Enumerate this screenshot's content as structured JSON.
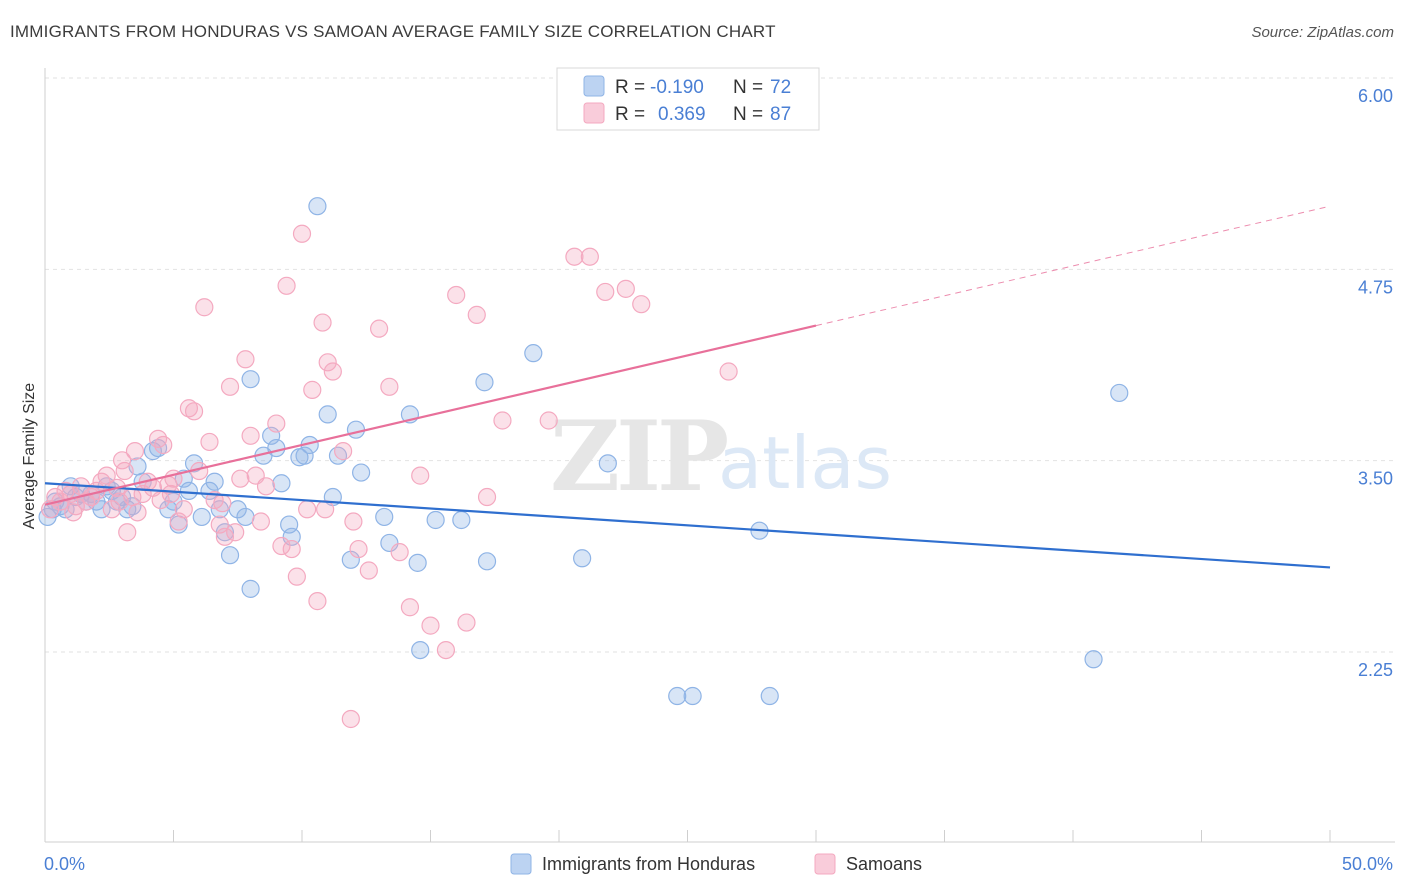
{
  "title": "IMMIGRANTS FROM HONDURAS VS SAMOAN AVERAGE FAMILY SIZE CORRELATION CHART",
  "source": "Source: ZipAtlas.com",
  "watermark": {
    "zip": "ZIP",
    "atlas": "atlas"
  },
  "chart_data": {
    "type": "scatter",
    "ylabel": "Average Family Size",
    "xlim": [
      0,
      50
    ],
    "ylim": [
      1.2,
      6.2
    ],
    "yticks": [
      {
        "value": 6.0,
        "label": "6.00"
      },
      {
        "value": 4.75,
        "label": "4.75"
      },
      {
        "value": 3.5,
        "label": "3.50"
      },
      {
        "value": 2.25,
        "label": "2.25"
      }
    ],
    "xtick_labels": {
      "min": "0.0%",
      "max": "50.0%"
    },
    "grid": true,
    "legend_position": "top-center",
    "series": [
      {
        "name": "Immigrants from Honduras",
        "color": "#8fb4e6",
        "line_color": "#2f6fcf",
        "r_label": "R =",
        "r_value": "-0.190",
        "n_label": "N =",
        "n_value": "72",
        "trend": {
          "x0": 0,
          "y0": 3.47,
          "x1": 50,
          "y1": 2.92
        },
        "points": [
          [
            0.1,
            3.25
          ],
          [
            0.3,
            3.3
          ],
          [
            0.4,
            3.35
          ],
          [
            0.6,
            3.32
          ],
          [
            0.8,
            3.3
          ],
          [
            1.0,
            3.45
          ],
          [
            1.2,
            3.38
          ],
          [
            1.4,
            3.4
          ],
          [
            1.6,
            3.35
          ],
          [
            1.8,
            3.4
          ],
          [
            2.0,
            3.35
          ],
          [
            2.2,
            3.3
          ],
          [
            2.4,
            3.45
          ],
          [
            2.6,
            3.42
          ],
          [
            2.8,
            3.35
          ],
          [
            3.0,
            3.38
          ],
          [
            3.2,
            3.3
          ],
          [
            3.4,
            3.32
          ],
          [
            3.6,
            3.58
          ],
          [
            3.8,
            3.48
          ],
          [
            4.2,
            3.68
          ],
          [
            4.4,
            3.7
          ],
          [
            4.8,
            3.3
          ],
          [
            5.0,
            3.35
          ],
          [
            5.2,
            3.2
          ],
          [
            5.4,
            3.5
          ],
          [
            5.6,
            3.42
          ],
          [
            5.8,
            3.6
          ],
          [
            6.1,
            3.25
          ],
          [
            6.4,
            3.42
          ],
          [
            6.6,
            3.48
          ],
          [
            6.8,
            3.3
          ],
          [
            7.0,
            3.15
          ],
          [
            7.2,
            3.0
          ],
          [
            7.5,
            3.3
          ],
          [
            7.8,
            3.25
          ],
          [
            8.0,
            4.15
          ],
          [
            8.0,
            2.78
          ],
          [
            8.5,
            3.65
          ],
          [
            8.8,
            3.78
          ],
          [
            9.0,
            3.7
          ],
          [
            9.2,
            3.47
          ],
          [
            9.5,
            3.2
          ],
          [
            9.6,
            3.12
          ],
          [
            9.9,
            3.64
          ],
          [
            10.1,
            3.65
          ],
          [
            10.3,
            3.72
          ],
          [
            10.6,
            5.28
          ],
          [
            11.0,
            3.92
          ],
          [
            11.2,
            3.38
          ],
          [
            11.4,
            3.65
          ],
          [
            11.9,
            2.97
          ],
          [
            12.1,
            3.82
          ],
          [
            12.3,
            3.54
          ],
          [
            13.2,
            3.25
          ],
          [
            13.4,
            3.08
          ],
          [
            14.2,
            3.92
          ],
          [
            14.5,
            2.95
          ],
          [
            14.6,
            2.38
          ],
          [
            15.2,
            3.23
          ],
          [
            16.2,
            3.23
          ],
          [
            17.1,
            4.13
          ],
          [
            17.2,
            2.96
          ],
          [
            19.0,
            4.32
          ],
          [
            20.9,
            2.98
          ],
          [
            21.9,
            3.6
          ],
          [
            24.6,
            2.08
          ],
          [
            25.2,
            2.08
          ],
          [
            27.8,
            3.16
          ],
          [
            28.2,
            2.08
          ],
          [
            40.8,
            2.32
          ],
          [
            41.8,
            4.06
          ]
        ]
      },
      {
        "name": "Samoans",
        "color": "#f4a9c0",
        "line_color": "#e8709a",
        "r_label": "R =",
        "r_value": "0.369",
        "n_label": "N =",
        "n_value": "87",
        "trend": {
          "x0": 0,
          "y0": 3.33,
          "x1": 30,
          "y1": 4.5
        },
        "trend_dashed": {
          "x0": 30,
          "y0": 4.5,
          "x1": 50,
          "y1": 5.28
        },
        "points": [
          [
            0.2,
            3.3
          ],
          [
            0.4,
            3.38
          ],
          [
            0.6,
            3.35
          ],
          [
            0.8,
            3.42
          ],
          [
            1.0,
            3.4
          ],
          [
            1.2,
            3.32
          ],
          [
            1.4,
            3.45
          ],
          [
            1.6,
            3.35
          ],
          [
            1.8,
            3.38
          ],
          [
            2.0,
            3.42
          ],
          [
            2.2,
            3.48
          ],
          [
            2.4,
            3.52
          ],
          [
            2.6,
            3.3
          ],
          [
            2.8,
            3.44
          ],
          [
            3.0,
            3.62
          ],
          [
            3.1,
            3.55
          ],
          [
            3.2,
            3.15
          ],
          [
            3.4,
            3.38
          ],
          [
            3.5,
            3.68
          ],
          [
            3.6,
            3.28
          ],
          [
            3.8,
            3.4
          ],
          [
            4.0,
            3.48
          ],
          [
            4.2,
            3.44
          ],
          [
            4.4,
            3.76
          ],
          [
            4.5,
            3.36
          ],
          [
            4.6,
            3.72
          ],
          [
            4.8,
            3.46
          ],
          [
            5.0,
            3.5
          ],
          [
            5.2,
            3.22
          ],
          [
            5.4,
            3.3
          ],
          [
            5.6,
            3.96
          ],
          [
            5.8,
            3.94
          ],
          [
            6.0,
            3.55
          ],
          [
            6.2,
            4.62
          ],
          [
            6.4,
            3.74
          ],
          [
            6.6,
            3.36
          ],
          [
            6.8,
            3.2
          ],
          [
            7.0,
            3.12
          ],
          [
            7.2,
            4.1
          ],
          [
            7.4,
            3.15
          ],
          [
            7.6,
            3.5
          ],
          [
            7.8,
            4.28
          ],
          [
            8.0,
            3.78
          ],
          [
            8.2,
            3.52
          ],
          [
            8.4,
            3.22
          ],
          [
            8.6,
            3.45
          ],
          [
            9.0,
            3.86
          ],
          [
            9.2,
            3.06
          ],
          [
            9.4,
            4.76
          ],
          [
            9.6,
            3.04
          ],
          [
            9.8,
            2.86
          ],
          [
            10.0,
            5.1
          ],
          [
            10.2,
            3.3
          ],
          [
            10.4,
            4.08
          ],
          [
            10.6,
            2.7
          ],
          [
            10.8,
            4.52
          ],
          [
            11.0,
            4.26
          ],
          [
            11.2,
            4.2
          ],
          [
            11.6,
            3.68
          ],
          [
            12.0,
            3.22
          ],
          [
            12.2,
            3.04
          ],
          [
            12.6,
            2.9
          ],
          [
            13.0,
            4.48
          ],
          [
            13.4,
            4.1
          ],
          [
            13.8,
            3.02
          ],
          [
            14.2,
            2.66
          ],
          [
            14.6,
            3.52
          ],
          [
            15.0,
            2.54
          ],
          [
            15.6,
            2.38
          ],
          [
            16.0,
            4.7
          ],
          [
            16.4,
            2.56
          ],
          [
            16.8,
            4.57
          ],
          [
            17.2,
            3.38
          ],
          [
            17.8,
            3.88
          ],
          [
            19.6,
            3.88
          ],
          [
            20.6,
            4.95
          ],
          [
            21.2,
            4.95
          ],
          [
            21.8,
            4.72
          ],
          [
            22.6,
            4.74
          ],
          [
            23.2,
            4.64
          ],
          [
            26.6,
            4.2
          ],
          [
            10.9,
            3.3
          ],
          [
            2.9,
            3.35
          ],
          [
            4.9,
            3.4
          ],
          [
            6.9,
            3.34
          ],
          [
            11.9,
            1.93
          ],
          [
            1.1,
            3.28
          ]
        ]
      }
    ]
  }
}
